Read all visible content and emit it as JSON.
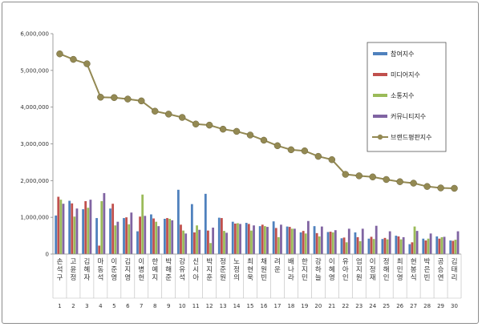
{
  "chart_data": {
    "type": "bar",
    "ylim": [
      0,
      6000000
    ],
    "yticks": [
      "0",
      "1,000,000",
      "2,000,000",
      "3,000,000",
      "4,000,000",
      "5,000,000",
      "6,000,000"
    ],
    "ytick_values": [
      0,
      1000000,
      2000000,
      3000000,
      4000000,
      5000000,
      6000000
    ],
    "grid": false,
    "legend_position": "top-right",
    "categories": [
      "손석구",
      "고윤정",
      "김혜자",
      "마동석",
      "이준영",
      "김지영",
      "이병헌",
      "한예지",
      "박해준",
      "강유석",
      "신시아",
      "박지훈",
      "정준원",
      "노정의",
      "최현욱",
      "채원빈",
      "려운",
      "배나라",
      "한지민",
      "강하늘",
      "이혜영",
      "유아인",
      "엄지원",
      "이정재",
      "정해인",
      "최민영",
      "현봉식",
      "박은빈",
      "공승연",
      "김태리"
    ],
    "ranks": [
      "1",
      "2",
      "3",
      "4",
      "5",
      "6",
      "7",
      "8",
      "9",
      "10",
      "11",
      "12",
      "13",
      "14",
      "15",
      "16",
      "17",
      "18",
      "19",
      "20",
      "21",
      "22",
      "23",
      "24",
      "25",
      "26",
      "27",
      "28",
      "29",
      "30"
    ],
    "series": [
      {
        "name": "참여지수",
        "type": "bar",
        "color": "#4f81bd",
        "values": [
          1050000,
          1450000,
          1220000,
          980000,
          1240000,
          980000,
          620000,
          1080000,
          960000,
          1750000,
          1360000,
          1640000,
          990000,
          880000,
          850000,
          760000,
          890000,
          750000,
          590000,
          760000,
          600000,
          430000,
          590000,
          420000,
          410000,
          500000,
          270000,
          420000,
          480000,
          370000
        ]
      },
      {
        "name": "미디어지수",
        "type": "bar",
        "color": "#c0504d",
        "values": [
          1560000,
          1380000,
          1440000,
          230000,
          1370000,
          1000000,
          1020000,
          970000,
          980000,
          800000,
          590000,
          640000,
          980000,
          830000,
          820000,
          800000,
          710000,
          740000,
          630000,
          570000,
          610000,
          450000,
          460000,
          470000,
          440000,
          480000,
          320000,
          370000,
          420000,
          360000
        ]
      },
      {
        "name": "소통지수",
        "type": "bar",
        "color": "#9bbb59",
        "values": [
          1480000,
          1020000,
          1260000,
          1440000,
          780000,
          810000,
          1620000,
          880000,
          960000,
          640000,
          780000,
          300000,
          630000,
          840000,
          640000,
          760000,
          460000,
          690000,
          560000,
          480000,
          590000,
          320000,
          350000,
          410000,
          400000,
          400000,
          750000,
          420000,
          460000,
          390000
        ]
      },
      {
        "name": "커뮤니티지수",
        "type": "bar",
        "color": "#8064a2",
        "values": [
          1370000,
          1240000,
          1480000,
          1660000,
          880000,
          1130000,
          1040000,
          760000,
          920000,
          560000,
          660000,
          720000,
          580000,
          820000,
          780000,
          740000,
          800000,
          690000,
          900000,
          750000,
          650000,
          690000,
          690000,
          770000,
          620000,
          460000,
          630000,
          560000,
          470000,
          620000
        ]
      },
      {
        "name": "브랜드평판지수",
        "type": "line",
        "color": "#938953",
        "values": [
          5450000,
          5300000,
          5180000,
          4270000,
          4260000,
          4220000,
          4170000,
          3890000,
          3810000,
          3720000,
          3540000,
          3510000,
          3400000,
          3340000,
          3240000,
          3100000,
          2950000,
          2840000,
          2810000,
          2660000,
          2570000,
          2170000,
          2130000,
          2100000,
          2030000,
          1970000,
          1930000,
          1840000,
          1800000,
          1790000
        ]
      }
    ]
  }
}
